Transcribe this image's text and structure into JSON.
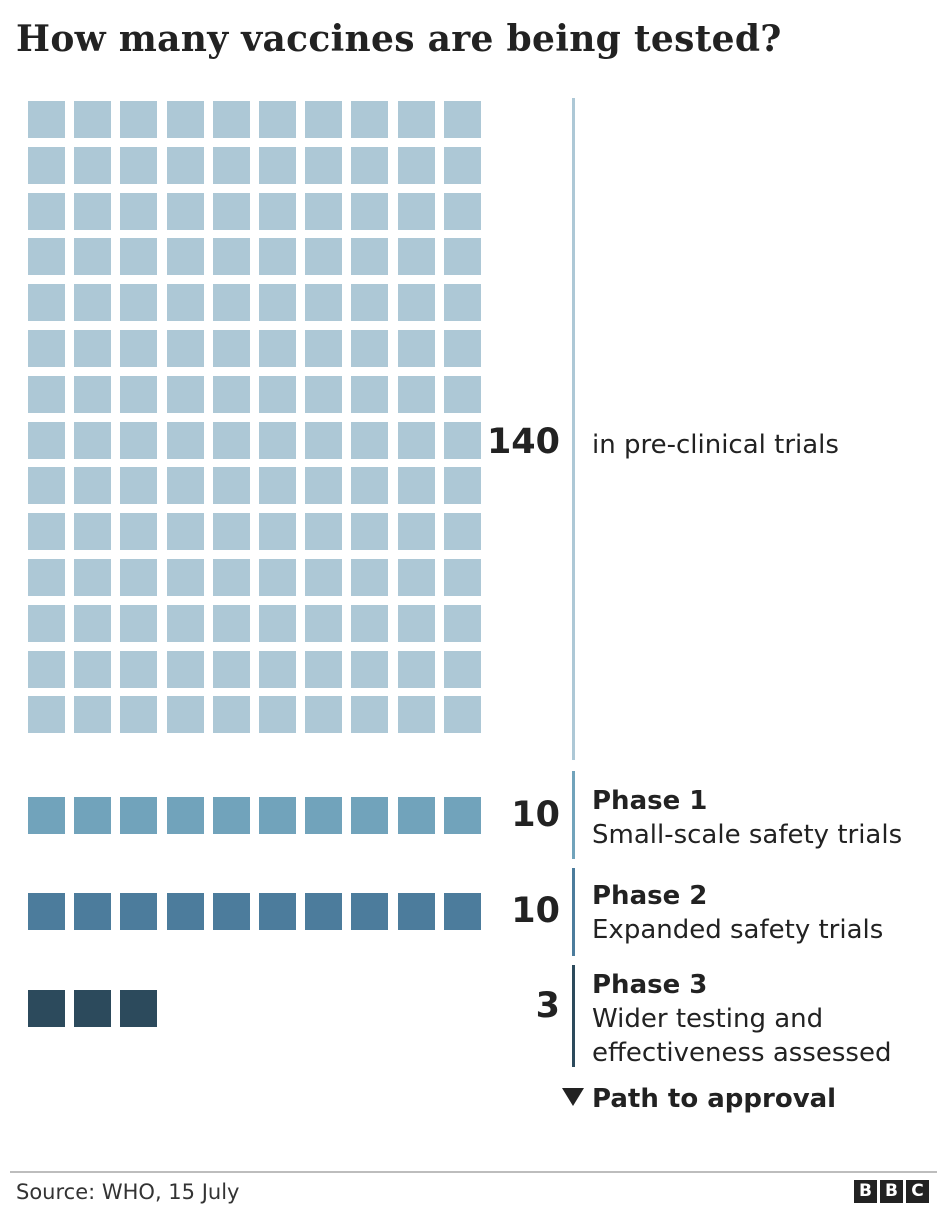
{
  "title": "How many vaccines are being tested?",
  "chart_data": {
    "type": "waffle",
    "title": "How many vaccines are being tested?",
    "categories": [
      "in pre-clinical trials",
      "Phase 1",
      "Phase 2",
      "Phase 3"
    ],
    "values": [
      140,
      10,
      10,
      3
    ],
    "units_per_square": 1,
    "columns": 10,
    "groups": [
      {
        "count_label": "140",
        "phase": "",
        "description": "in pre-clinical trials",
        "value": 140,
        "color": "#adc8d6"
      },
      {
        "count_label": "10",
        "phase": "Phase 1",
        "description": "Small-scale safety trials",
        "value": 10,
        "color": "#71a3bb"
      },
      {
        "count_label": "10",
        "phase": "Phase 2",
        "description": "Expanded safety trials",
        "value": 10,
        "color": "#4c7c9c"
      },
      {
        "count_label": "3",
        "phase": "Phase 3",
        "description": "Wider testing and effectiveness assessed",
        "value": 3,
        "color": "#2c4a5c"
      }
    ],
    "direction_label": "Path to approval"
  },
  "footer": {
    "source": "Source: WHO, 15 July",
    "logo_letters": [
      "B",
      "B",
      "C"
    ]
  }
}
